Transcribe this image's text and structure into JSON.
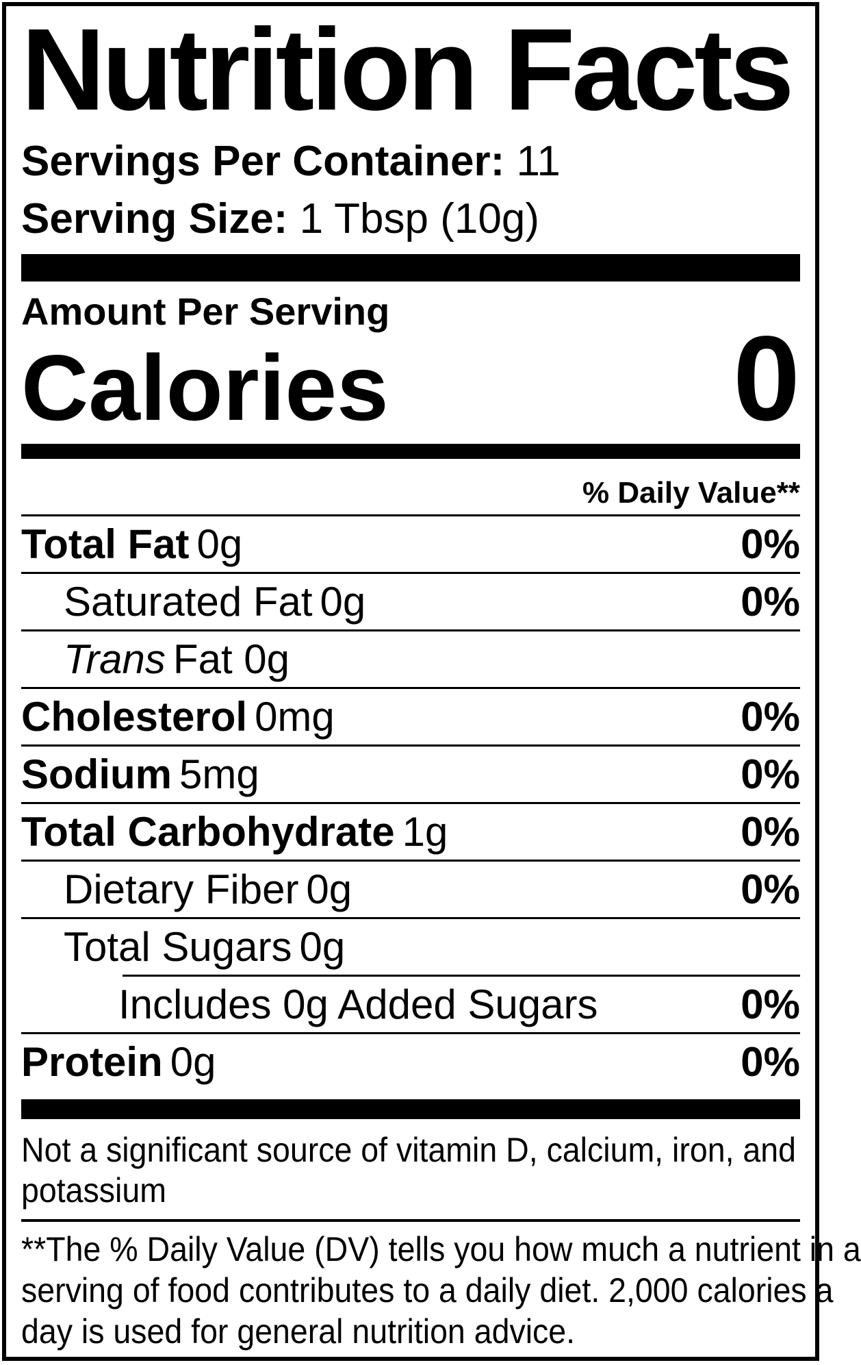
{
  "title": "Nutrition Facts",
  "servings_per_container": {
    "label": "Servings Per Container:",
    "value": "11"
  },
  "serving_size": {
    "label": "Serving Size:",
    "value": "1 Tbsp (10g)"
  },
  "amount_per_serving": "Amount Per Serving",
  "calories": {
    "label": "Calories",
    "value": "0"
  },
  "daily_value_header": "% Daily Value**",
  "nutrients": [
    {
      "name": "Total Fat",
      "amount": "0g",
      "dv": "0%"
    },
    {
      "name": "Saturated Fat",
      "amount": "0g",
      "dv": "0%"
    },
    {
      "name": "Trans",
      "amount": "Fat 0g",
      "dv": ""
    },
    {
      "name": "Cholesterol",
      "amount": "0mg",
      "dv": "0%"
    },
    {
      "name": "Sodium",
      "amount": "5mg",
      "dv": "0%"
    },
    {
      "name": "Total Carbohydrate",
      "amount": "1g",
      "dv": "0%"
    },
    {
      "name": "Dietary Fiber",
      "amount": "0g",
      "dv": "0%"
    },
    {
      "name": "Total Sugars",
      "amount": "0g",
      "dv": ""
    },
    {
      "name": "Includes 0g Added Sugars",
      "amount": "",
      "dv": "0%"
    },
    {
      "name": "Protein",
      "amount": "0g",
      "dv": "0%"
    }
  ],
  "not_significant": {
    "line1": "Not a significant source of vitamin D, calcium, iron, and",
    "line2": "potassium"
  },
  "footnote": {
    "line1": "**The % Daily Value (DV) tells you how much a nutrient in a",
    "line2": "serving of food contributes to a daily diet. 2,000 calories a",
    "line3": "day is used for general nutrition advice."
  },
  "colors": {
    "text": "#000000",
    "background": "#ffffff"
  }
}
